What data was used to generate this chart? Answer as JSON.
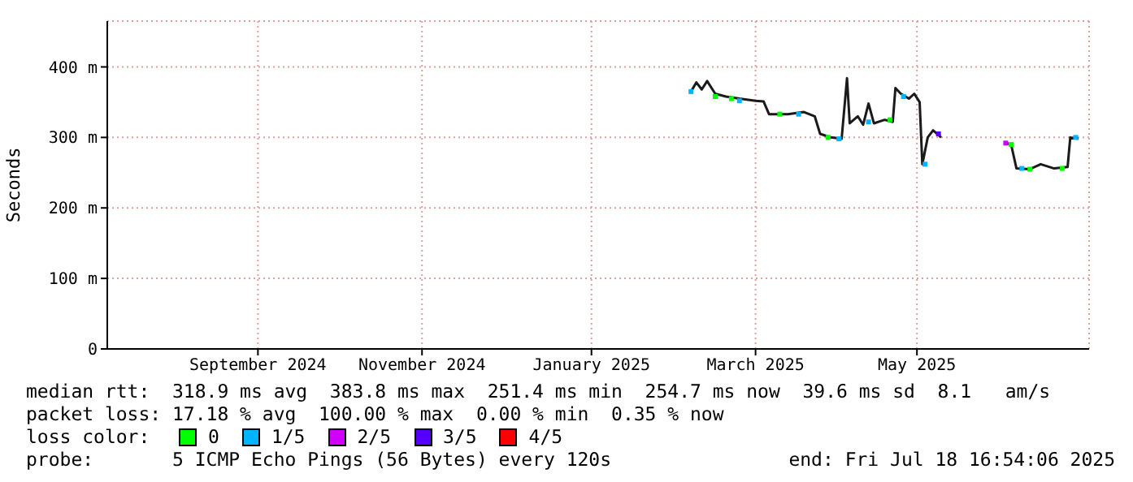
{
  "chart_data": {
    "type": "line",
    "ylabel": "Seconds",
    "legend_title": "loss color:",
    "legend": "bottom",
    "grid": true,
    "xlim": [
      "2024-07-18",
      "2025-07-18"
    ],
    "xticks": [
      {
        "value": "2024-09-12",
        "label": "September 2024"
      },
      {
        "value": "2024-11-12",
        "label": "November 2024"
      },
      {
        "value": "2025-01-14",
        "label": "January 2025"
      },
      {
        "value": "2025-03-16",
        "label": "March 2025"
      },
      {
        "value": "2025-05-15",
        "label": "May 2025"
      }
    ],
    "ylim": [
      0,
      465
    ],
    "yticks": [
      0,
      {
        "value": 100,
        "label": "100 m"
      },
      {
        "value": 200,
        "label": "200 m"
      },
      {
        "value": 300,
        "label": "300 m"
      },
      {
        "value": 400,
        "label": "400 m"
      }
    ],
    "series": [
      {
        "color": "#1a1a1a",
        "x": [
          "2025-02-20",
          "2025-02-22",
          "2025-02-24",
          "2025-02-26",
          "2025-03-01",
          "2025-03-05",
          "2025-03-10",
          "2025-03-16",
          "2025-03-19",
          "2025-03-21",
          "2025-03-28",
          "2025-04-03",
          "2025-04-07",
          "2025-04-09",
          "2025-04-13",
          "2025-04-17",
          "2025-04-19",
          "2025-04-20",
          "2025-04-23",
          "2025-04-25",
          "2025-04-27",
          "2025-04-29",
          "2025-05-03",
          "2025-05-06",
          "2025-05-07",
          "2025-05-09",
          "2025-05-12",
          "2025-05-14",
          "2025-05-16",
          "2025-05-17",
          "2025-05-19",
          "2025-05-21",
          "2025-05-24",
          "2025-05-30",
          "2025-06-17",
          "2025-06-19",
          "2025-06-21",
          "2025-06-26",
          "2025-06-30",
          "2025-07-05",
          "2025-07-10",
          "2025-07-11",
          "2025-07-14"
        ],
        "values": [
          365,
          378,
          368,
          380,
          362,
          358,
          355,
          352,
          351,
          333,
          333,
          336,
          330,
          305,
          300,
          298,
          384,
          320,
          330,
          318,
          348,
          320,
          325,
          322,
          370,
          362,
          355,
          362,
          350,
          262,
          300,
          310,
          300,
          null,
          292,
          290,
          256,
          255,
          262,
          256,
          258,
          300,
          298
        ]
      },
      {
        "type": "scatter",
        "marker": "square",
        "name": "0",
        "color": "#00ff00",
        "x": [
          "2025-03-01",
          "2025-03-07",
          "2025-03-25",
          "2025-04-12",
          "2025-05-05",
          "2025-06-19",
          "2025-06-26",
          "2025-07-08"
        ],
        "values": [
          358,
          355,
          333,
          300,
          325,
          290,
          255,
          256
        ]
      },
      {
        "type": "scatter",
        "marker": "square",
        "name": "1/5",
        "color": "#00b4ff",
        "x": [
          "2025-02-20",
          "2025-03-10",
          "2025-04-01",
          "2025-04-16",
          "2025-04-27",
          "2025-05-10",
          "2025-05-18",
          "2025-06-23",
          "2025-07-13"
        ],
        "values": [
          365,
          352,
          333,
          298,
          322,
          358,
          262,
          256,
          300
        ]
      },
      {
        "type": "scatter",
        "marker": "square",
        "name": "2/5",
        "color": "#d000ff",
        "x": [
          "2025-06-17"
        ],
        "values": [
          292
        ]
      },
      {
        "type": "scatter",
        "marker": "square",
        "name": "3/5",
        "color": "#5500ff",
        "x": [
          "2025-05-23"
        ],
        "values": [
          305
        ]
      },
      {
        "type": "scatter",
        "marker": "square",
        "name": "4/5",
        "color": "#ff0000"
      }
    ],
    "annotations": [
      "median rtt:  318.9 ms avg  383.8 ms max  251.4 ms min  254.7 ms now  39.6 ms sd  8.1   am/s",
      "packet loss: 17.18 % avg  100.00 % max  0.00 % min  0.35 % now",
      "probe:       5 ICMP Echo Pings (56 Bytes) every 120s",
      "end: Fri Jul 18 16:54:06 2025"
    ]
  }
}
